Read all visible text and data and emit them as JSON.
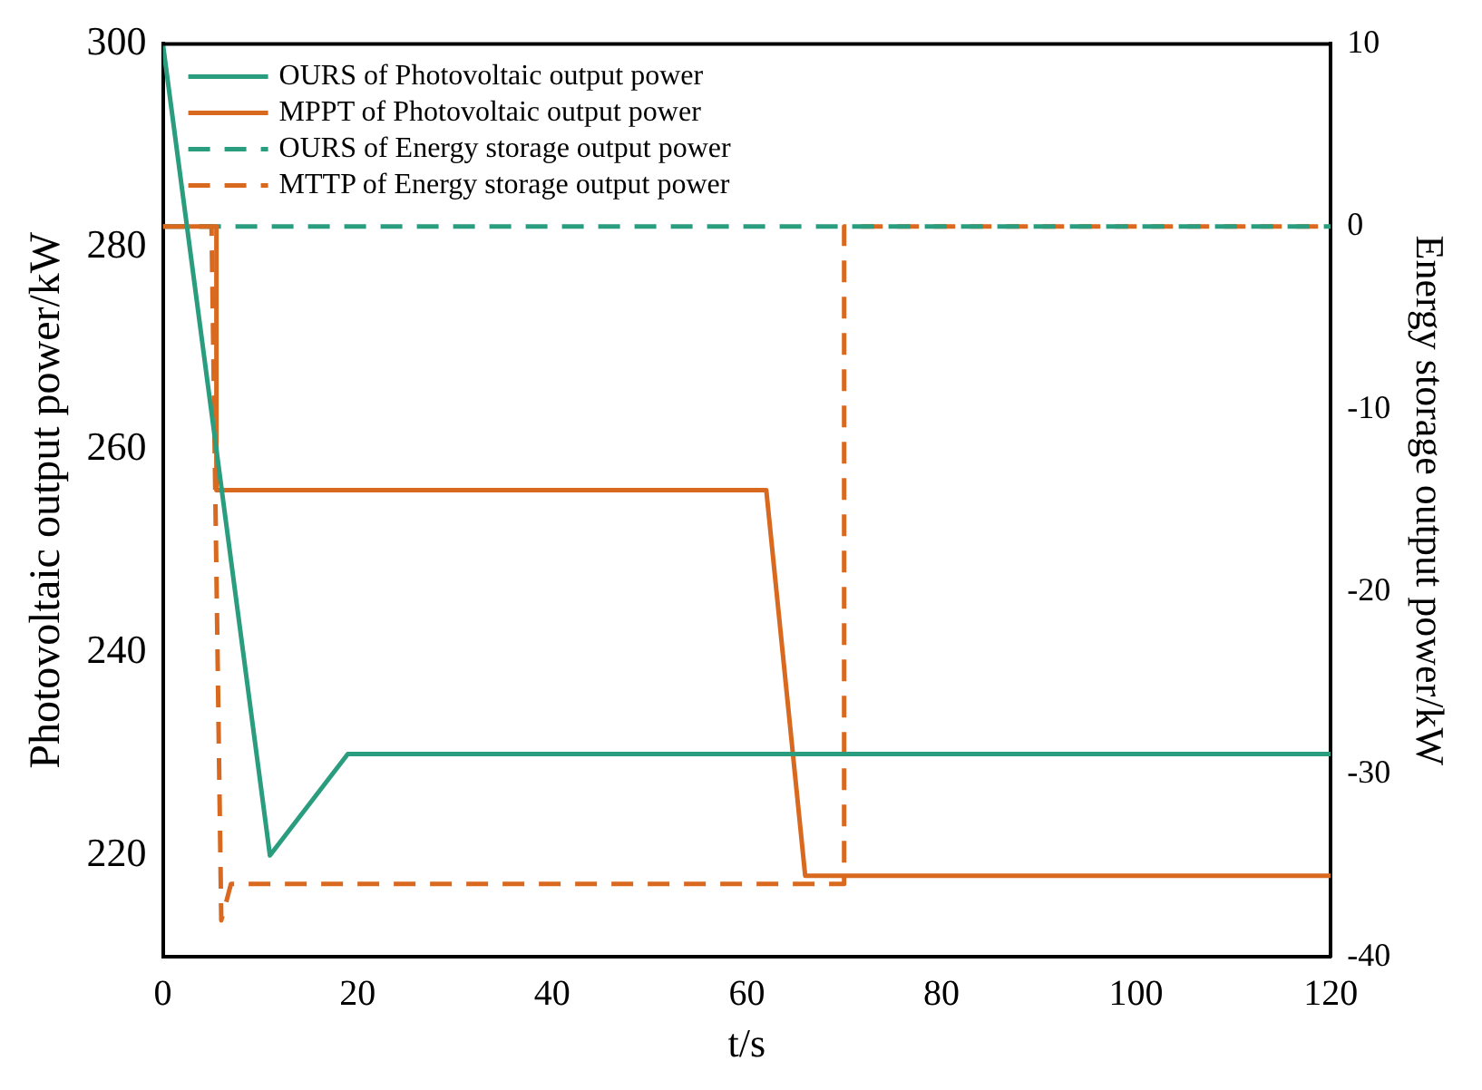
{
  "chart_data": {
    "type": "line",
    "xlabel": "t/s",
    "ylabel": "Photovoltaic output power/kW",
    "y2label": "Energy storage output power/kW",
    "xlim": [
      0,
      120
    ],
    "xticks": [
      0,
      20,
      40,
      60,
      80,
      100,
      120
    ],
    "ylim": [
      210,
      300
    ],
    "yticks": [
      220,
      240,
      260,
      280,
      300
    ],
    "y2lim": [
      -40,
      10
    ],
    "y2ticks": [
      -40,
      -30,
      -20,
      -10,
      0,
      10
    ],
    "grid": false,
    "legend": "top left",
    "marker": "none",
    "series": [
      {
        "name": "OURS of Photovoltaic output power",
        "color": "#2a9d7f",
        "line_style": "solid",
        "x": [
          0,
          11,
          19,
          120
        ],
        "values": [
          300,
          220,
          230,
          230
        ]
      },
      {
        "name": "MPPT of Photovoltaic output power",
        "color": "#d9691f",
        "line_style": "solid",
        "x": [
          0,
          5.5,
          5.5,
          62,
          66,
          120
        ],
        "values": [
          282,
          282,
          256,
          256,
          218,
          218
        ]
      },
      {
        "name": "OURS of Energy storage output power",
        "color": "#2a9d7f",
        "line_style": "dashed",
        "axis": "y2",
        "x": [
          0,
          120
        ],
        "values": [
          0,
          0
        ]
      },
      {
        "name": "MTTP of Energy storage output power",
        "color": "#d9691f",
        "line_style": "dashed",
        "axis": "y2",
        "x": [
          0,
          5,
          6,
          7,
          70,
          70,
          120
        ],
        "values": [
          0,
          0,
          -38,
          -36,
          -36,
          0,
          0
        ]
      }
    ]
  }
}
